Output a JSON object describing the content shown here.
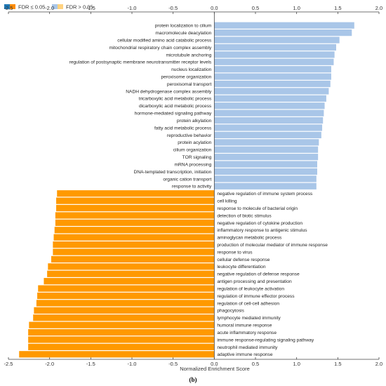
{
  "chart_data": {
    "type": "bar",
    "orientation": "horizontal",
    "xlabel": "Normalized Enrichment Score",
    "xlim": [
      -2.5,
      2.0
    ],
    "xticks": [
      "-2.5",
      "-2.0",
      "-1.5",
      "-1.0",
      "-0.5",
      "0.0",
      "0.5",
      "1.0",
      "1.5",
      "2.0"
    ],
    "tick_values": [
      -2.5,
      -2.0,
      -1.5,
      -1.0,
      -0.5,
      0.0,
      0.5,
      1.0,
      1.5,
      2.0
    ],
    "grid": false,
    "legend_position": "top-left",
    "legend": [
      {
        "label": "FDR ≤ 0.05",
        "colors": [
          "#1f77b4",
          "#ff8c00"
        ]
      },
      {
        "label": "FDR > 0.05",
        "colors": [
          "#a9c6e8",
          "#ffd27f"
        ]
      }
    ],
    "colors": {
      "positive": "#a9c6e8",
      "negative": "#ff9900"
    },
    "panel_label": "(b)",
    "categories": [
      "protein localization to cilium",
      "macromolecule deacylation",
      "cellular modified amino acid catabolic process",
      "mitochondrial respiratory chain complex assembly",
      "microtubule anchoring",
      "regulation of postsynaptic membrane neurotransmitter receptor levels",
      "nucleus localization",
      "peroxisome organization",
      "peroxisomal transport",
      "NADH dehydrogenase complex assembly",
      "tricarboxylic acid metabolic process",
      "dicarboxylic acid metabolic process",
      "hormone-mediated signaling pathway",
      "protein alkylation",
      "fatty acid metabolic process",
      "reproductive behavior",
      "protein acylation",
      "cilium organization",
      "TOR signaling",
      "mRNA processing",
      "DNA-templated transcription, initiation",
      "organic cation transport",
      "response to activity",
      "negative regulation of immune system process",
      "cell killing",
      "response to molecule of bacterial origin",
      "detection of biotic stimulus",
      "negative regulation of cytokine production",
      "inflammatory response to antigenic stimulus",
      "aminoglycan metabolic process",
      "production of molecular mediator of immune response",
      "response to virus",
      "cellular defense response",
      "leukocyte differentiation",
      "negative regulation of defense response",
      "antigen processing and presentation",
      "regulation of leukocyte activation",
      "regulation of immune effector process",
      "regulation of cell-cell adhesion",
      "phagocytosis",
      "lymphocyte mediated immunity",
      "humoral immune response",
      "acute inflammatory response",
      "immune response-regulating signaling pathway",
      "neutrophil mediated immunity",
      "adaptive immune response"
    ],
    "values": [
      1.7,
      1.67,
      1.52,
      1.48,
      1.46,
      1.45,
      1.42,
      1.42,
      1.41,
      1.39,
      1.36,
      1.34,
      1.33,
      1.32,
      1.31,
      1.3,
      1.27,
      1.26,
      1.26,
      1.25,
      1.25,
      1.24,
      1.24,
      -1.91,
      -1.92,
      -1.92,
      -1.93,
      -1.93,
      -1.94,
      -1.95,
      -1.96,
      -1.96,
      -1.98,
      -2.02,
      -2.03,
      -2.07,
      -2.14,
      -2.15,
      -2.16,
      -2.19,
      -2.2,
      -2.25,
      -2.26,
      -2.26,
      -2.26,
      -2.37
    ]
  }
}
